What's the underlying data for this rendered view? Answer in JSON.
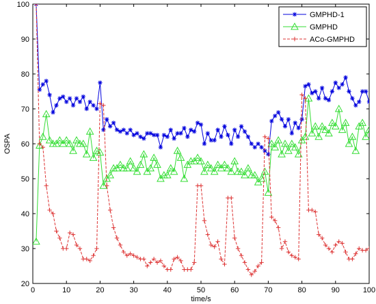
{
  "chart_data": {
    "type": "line",
    "xlabel": "time/s",
    "ylabel": "OSPA",
    "xlim": [
      0,
      100
    ],
    "ylim": [
      20,
      100
    ],
    "xticks": [
      0,
      10,
      20,
      30,
      40,
      50,
      60,
      70,
      80,
      90,
      100
    ],
    "yticks": [
      20,
      30,
      40,
      50,
      60,
      70,
      80,
      90,
      100
    ],
    "grid": false,
    "legend_position": "top-right",
    "x": [
      1,
      2,
      3,
      4,
      5,
      6,
      7,
      8,
      9,
      10,
      11,
      12,
      13,
      14,
      15,
      16,
      17,
      18,
      19,
      20,
      21,
      22,
      23,
      24,
      25,
      26,
      27,
      28,
      29,
      30,
      31,
      32,
      33,
      34,
      35,
      36,
      37,
      38,
      39,
      40,
      41,
      42,
      43,
      44,
      45,
      46,
      47,
      48,
      49,
      50,
      51,
      52,
      53,
      54,
      55,
      56,
      57,
      58,
      59,
      60,
      61,
      62,
      63,
      64,
      65,
      66,
      67,
      68,
      69,
      70,
      71,
      72,
      73,
      74,
      75,
      76,
      77,
      78,
      79,
      80,
      81,
      82,
      83,
      84,
      85,
      86,
      87,
      88,
      89,
      90,
      91,
      92,
      93,
      94,
      95,
      96,
      97,
      98,
      99,
      100
    ],
    "series": [
      {
        "name": "GMPHD-1",
        "color": "#0000dd",
        "marker": "asterisk",
        "values": [
          100,
          75.5,
          77,
          78,
          74,
          69,
          71,
          73,
          73.5,
          72,
          73,
          71,
          73,
          72,
          73.5,
          70,
          72,
          71,
          70,
          77.5,
          64,
          67,
          65,
          66,
          64,
          63.5,
          64,
          63,
          64,
          62.5,
          63,
          62,
          61.5,
          63,
          63,
          62.5,
          62.5,
          59,
          62.5,
          62,
          64,
          61.5,
          63,
          63,
          64.5,
          62,
          64,
          63.5,
          66,
          65.5,
          60,
          63,
          61,
          61,
          64,
          62,
          65,
          62.5,
          60,
          64,
          62,
          65,
          63.5,
          62,
          60,
          59,
          60,
          59,
          58,
          57,
          66.5,
          68,
          69,
          67,
          65,
          67,
          63,
          66,
          64.5,
          67,
          76.5,
          77,
          74.5,
          75,
          73,
          76,
          73,
          72.5,
          75,
          77.5,
          76,
          77,
          79,
          75,
          73,
          71,
          72,
          75,
          75,
          72
        ]
      },
      {
        "name": "GMPHD",
        "color": "#33dd33",
        "marker": "triangle",
        "values": [
          32,
          59.5,
          62,
          68.5,
          61,
          60,
          60,
          61,
          60,
          61,
          60,
          58,
          61,
          60,
          60,
          57,
          63.5,
          56,
          58,
          57.5,
          48,
          50,
          51,
          53,
          53,
          54,
          53,
          53,
          55,
          53,
          52,
          54,
          57,
          52,
          53,
          56,
          54,
          50,
          51,
          51,
          53,
          52,
          58,
          56,
          50,
          54,
          55,
          55,
          56,
          55,
          52,
          54,
          53,
          52,
          54,
          53,
          54,
          53,
          52,
          55,
          52,
          52,
          51,
          53,
          51,
          51,
          49,
          50,
          52,
          46,
          60,
          59,
          61,
          57,
          60,
          58,
          60,
          59,
          57,
          61,
          62,
          73,
          63,
          65,
          62,
          65,
          64,
          63,
          66,
          65,
          70,
          64,
          66,
          60,
          62,
          58,
          65,
          66,
          62,
          64
        ]
      },
      {
        "name": "ACo-GMPHD",
        "color": "#dd3333",
        "marker": "plus",
        "values": [
          100,
          60,
          59,
          48,
          41,
          40,
          35,
          33,
          30,
          30,
          34.5,
          34,
          31,
          30,
          27,
          27,
          26.5,
          28,
          30,
          71.5,
          71,
          48,
          41,
          36,
          33,
          31,
          29,
          28,
          28.5,
          28,
          27.5,
          27,
          27,
          25,
          26,
          27,
          26,
          26.5,
          25,
          24,
          24,
          27,
          27.5,
          26.5,
          24,
          24,
          24,
          26,
          48,
          48,
          38,
          34,
          31,
          30.5,
          32,
          27,
          25.5,
          44.5,
          44.5,
          33,
          30,
          28,
          26,
          24,
          22.5,
          23.5,
          25,
          26,
          62,
          61.5,
          39,
          38,
          36,
          30,
          32,
          29,
          28,
          27.5,
          27,
          74,
          73,
          41,
          41,
          40.5,
          34,
          33,
          31,
          30,
          29,
          31,
          32,
          31.5,
          29,
          27,
          27,
          28.5,
          30,
          29.5,
          29.5,
          30
        ]
      }
    ]
  }
}
